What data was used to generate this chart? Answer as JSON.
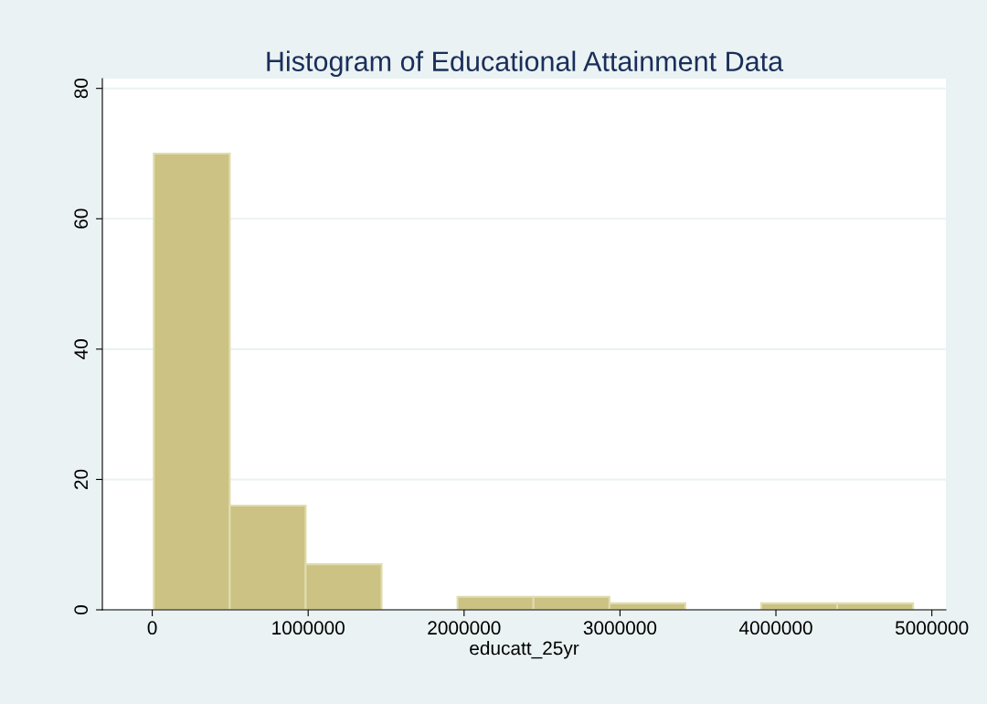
{
  "chart_data": {
    "type": "histogram",
    "title": "Histogram of Educational Attainment Data",
    "xlabel": "educatt_25yr",
    "bins": [
      10000,
      497000,
      984000,
      1471000,
      1958000,
      2445000,
      2932000,
      3419000,
      3906000,
      4393000,
      4880000
    ],
    "values": [
      70,
      16,
      7,
      0,
      2,
      2,
      1,
      0,
      1,
      1
    ],
    "color": "#cbc283",
    "xlim": [
      -320000,
      5090000
    ],
    "xticks": [
      0,
      1000000,
      2000000,
      3000000,
      4000000,
      5000000
    ],
    "ylim": [
      0,
      81.5
    ],
    "yticks": [
      0,
      20,
      40,
      60,
      80
    ],
    "grid": "y"
  }
}
